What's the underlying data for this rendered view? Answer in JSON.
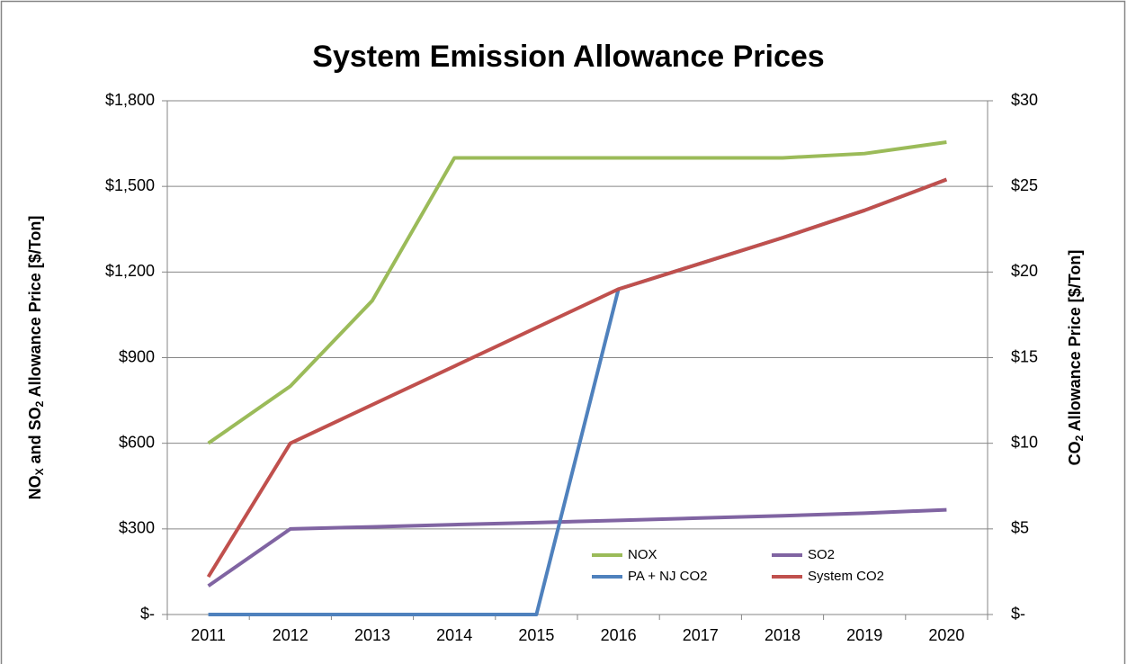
{
  "chart_data": {
    "type": "line",
    "title": "System Emission Allowance Prices",
    "ylabel": [
      {
        "text": "NO"
      },
      {
        "text": "X",
        "sub": true
      },
      {
        "text": " and SO"
      },
      {
        "text": "2",
        "sub": true
      },
      {
        "text": " Allowance Price [$/Ton]"
      }
    ],
    "y2label": [
      {
        "text": "CO"
      },
      {
        "text": "2",
        "sub": true
      },
      {
        "text": "  Allowance Price [$/Ton]"
      }
    ],
    "categories": [
      "2011",
      "2012",
      "2013",
      "2014",
      "2015",
      "2016",
      "2017",
      "2018",
      "2019",
      "2020"
    ],
    "ylim": [
      0,
      1800
    ],
    "yticks": [
      {
        "value": 0,
        "label": "$-"
      },
      {
        "value": 300,
        "label": "$300"
      },
      {
        "value": 600,
        "label": "$600"
      },
      {
        "value": 900,
        "label": "$900"
      },
      {
        "value": 1200,
        "label": "$1,200"
      },
      {
        "value": 1500,
        "label": "$1,500"
      },
      {
        "value": 1800,
        "label": "$1,800"
      }
    ],
    "y2lim": [
      0,
      30
    ],
    "y2ticks": [
      {
        "value": 0,
        "label": "$-"
      },
      {
        "value": 5,
        "label": "$5"
      },
      {
        "value": 10,
        "label": "$10"
      },
      {
        "value": 15,
        "label": "$15"
      },
      {
        "value": 20,
        "label": "$20"
      },
      {
        "value": 25,
        "label": "$25"
      },
      {
        "value": 30,
        "label": "$30"
      }
    ],
    "grid": true,
    "legend": "lower right",
    "series": [
      {
        "name": "NOX",
        "color": "#9bbb59",
        "values": [
          600,
          800,
          1100,
          1600,
          1600,
          1600,
          1600,
          1600,
          1615,
          1655
        ]
      },
      {
        "name": "SO2",
        "color": "#8064a2",
        "values": [
          100,
          300,
          307,
          315,
          322,
          330,
          338,
          346,
          355,
          367
        ]
      },
      {
        "name": "PA + NJ CO2",
        "color": "#4f81bd",
        "axis": "y2",
        "values": [
          0,
          0,
          0,
          0,
          0,
          19,
          20.5,
          22,
          23.6,
          25.4
        ]
      },
      {
        "name": "System CO2",
        "color": "#c0504d",
        "axis": "y2",
        "values": [
          2.2,
          10,
          12.25,
          14.5,
          16.75,
          19,
          20.5,
          22,
          23.6,
          25.4
        ]
      }
    ]
  }
}
